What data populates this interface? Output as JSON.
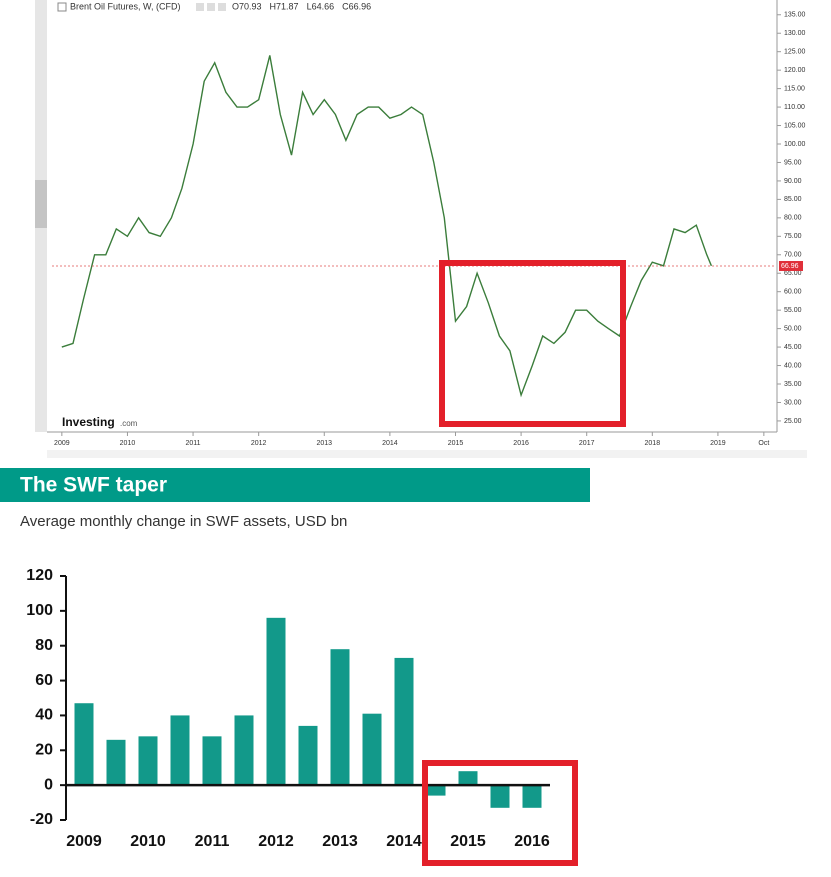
{
  "chart_data": [
    {
      "type": "line",
      "title": "Brent Oil Futures, W, (CFD)",
      "ohlc_labels": [
        "O70.93",
        "H71.87",
        "L64.66",
        "C66.96"
      ],
      "watermark": [
        "Investing",
        ".com"
      ],
      "color": "#3b7d3b",
      "last_price": 66.96,
      "x": [
        2009.0,
        2009.17,
        2009.33,
        2009.5,
        2009.67,
        2009.83,
        2010.0,
        2010.17,
        2010.33,
        2010.5,
        2010.67,
        2010.83,
        2011.0,
        2011.17,
        2011.33,
        2011.5,
        2011.67,
        2011.83,
        2012.0,
        2012.17,
        2012.33,
        2012.5,
        2012.67,
        2012.83,
        2013.0,
        2013.17,
        2013.33,
        2013.5,
        2013.67,
        2013.83,
        2014.0,
        2014.17,
        2014.33,
        2014.5,
        2014.67,
        2014.83,
        2015.0,
        2015.17,
        2015.33,
        2015.5,
        2015.67,
        2015.83,
        2016.0,
        2016.17,
        2016.33,
        2016.5,
        2016.67,
        2016.83,
        2017.0,
        2017.17,
        2017.33,
        2017.5,
        2017.67,
        2017.83,
        2018.0,
        2018.17,
        2018.33,
        2018.5,
        2018.67,
        2018.83,
        2018.9
      ],
      "values": [
        45,
        46,
        58,
        70,
        70,
        77,
        75,
        80,
        76,
        75,
        80,
        88,
        100,
        117,
        122,
        114,
        110,
        110,
        112,
        124,
        108,
        97,
        114,
        108,
        112,
        108,
        101,
        108,
        110,
        110,
        107,
        108,
        110,
        108,
        95,
        80,
        52,
        56,
        65,
        57,
        48,
        44,
        32,
        40,
        48,
        46,
        49,
        55,
        55,
        52,
        50,
        48,
        56,
        63,
        68,
        67,
        77,
        76,
        78,
        70,
        67
      ],
      "xlim": [
        2008.85,
        2019.87
      ],
      "xticks": [
        2009,
        2010,
        2011,
        2012,
        2013,
        2014,
        2015,
        2016,
        2017,
        2018,
        2019,
        {
          "value": 2019.7,
          "label": "Oct"
        }
      ],
      "ylim": [
        22,
        139
      ],
      "yticks": [
        {
          "value": 25,
          "label": "25.00"
        },
        {
          "value": 30,
          "label": "30.00"
        },
        {
          "value": 35,
          "label": "35.00"
        },
        {
          "value": 40,
          "label": "40.00"
        },
        {
          "value": 45,
          "label": "45.00"
        },
        {
          "value": 50,
          "label": "50.00"
        },
        {
          "value": 55,
          "label": "55.00"
        },
        {
          "value": 60,
          "label": "60.00"
        },
        {
          "value": 65,
          "label": "65.00"
        },
        {
          "value": 70,
          "label": "70.00"
        },
        {
          "value": 75,
          "label": "75.00"
        },
        {
          "value": 80,
          "label": "80.00"
        },
        {
          "value": 85,
          "label": "85.00"
        },
        {
          "value": 90,
          "label": "90.00"
        },
        {
          "value": 95,
          "label": "95.00"
        },
        {
          "value": 100,
          "label": "100.00"
        },
        {
          "value": 105,
          "label": "105.00"
        },
        {
          "value": 110,
          "label": "110.00"
        },
        {
          "value": 115,
          "label": "115.00"
        },
        {
          "value": 120,
          "label": "120.00"
        },
        {
          "value": 125,
          "label": "125.00"
        },
        {
          "value": 130,
          "label": "130.00"
        },
        {
          "value": 135,
          "label": "135.00"
        }
      ]
    },
    {
      "type": "bar",
      "title": "The SWF taper",
      "subtitle": "Average monthly change in SWF assets, USD bn",
      "categories": [
        "2009",
        null,
        "2010",
        null,
        "2011",
        null,
        "2012",
        null,
        "2013",
        null,
        "2014",
        null,
        "2015",
        null,
        "2016"
      ],
      "values": [
        47,
        26,
        28,
        40,
        28,
        40,
        96,
        34,
        78,
        41,
        73,
        -6,
        8,
        -13,
        -13
      ],
      "color": "#12998a",
      "ylim": [
        -20,
        120
      ],
      "yticks": [
        -20,
        0,
        20,
        40,
        60,
        80,
        100,
        120
      ]
    }
  ]
}
